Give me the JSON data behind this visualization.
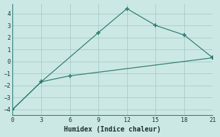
{
  "line1_x": [
    0,
    3,
    9,
    12,
    15,
    18,
    21
  ],
  "line1_y": [
    -4,
    -1.7,
    2.4,
    4.4,
    3.0,
    2.2,
    0.3
  ],
  "line2_x": [
    0,
    3,
    6,
    21
  ],
  "line2_y": [
    -4,
    -1.7,
    -1.2,
    0.3
  ],
  "line_color": "#2d7d74",
  "marker": "P",
  "marker_size": 3.5,
  "bg_color": "#cce8e4",
  "grid_color": "#aacfcc",
  "xlabel": "Humidex (Indice chaleur)",
  "xlim": [
    0,
    21
  ],
  "ylim": [
    -4.5,
    4.8
  ],
  "xticks": [
    0,
    3,
    6,
    9,
    12,
    15,
    18,
    21
  ],
  "yticks": [
    -4,
    -3,
    -2,
    -1,
    0,
    1,
    2,
    3,
    4
  ]
}
